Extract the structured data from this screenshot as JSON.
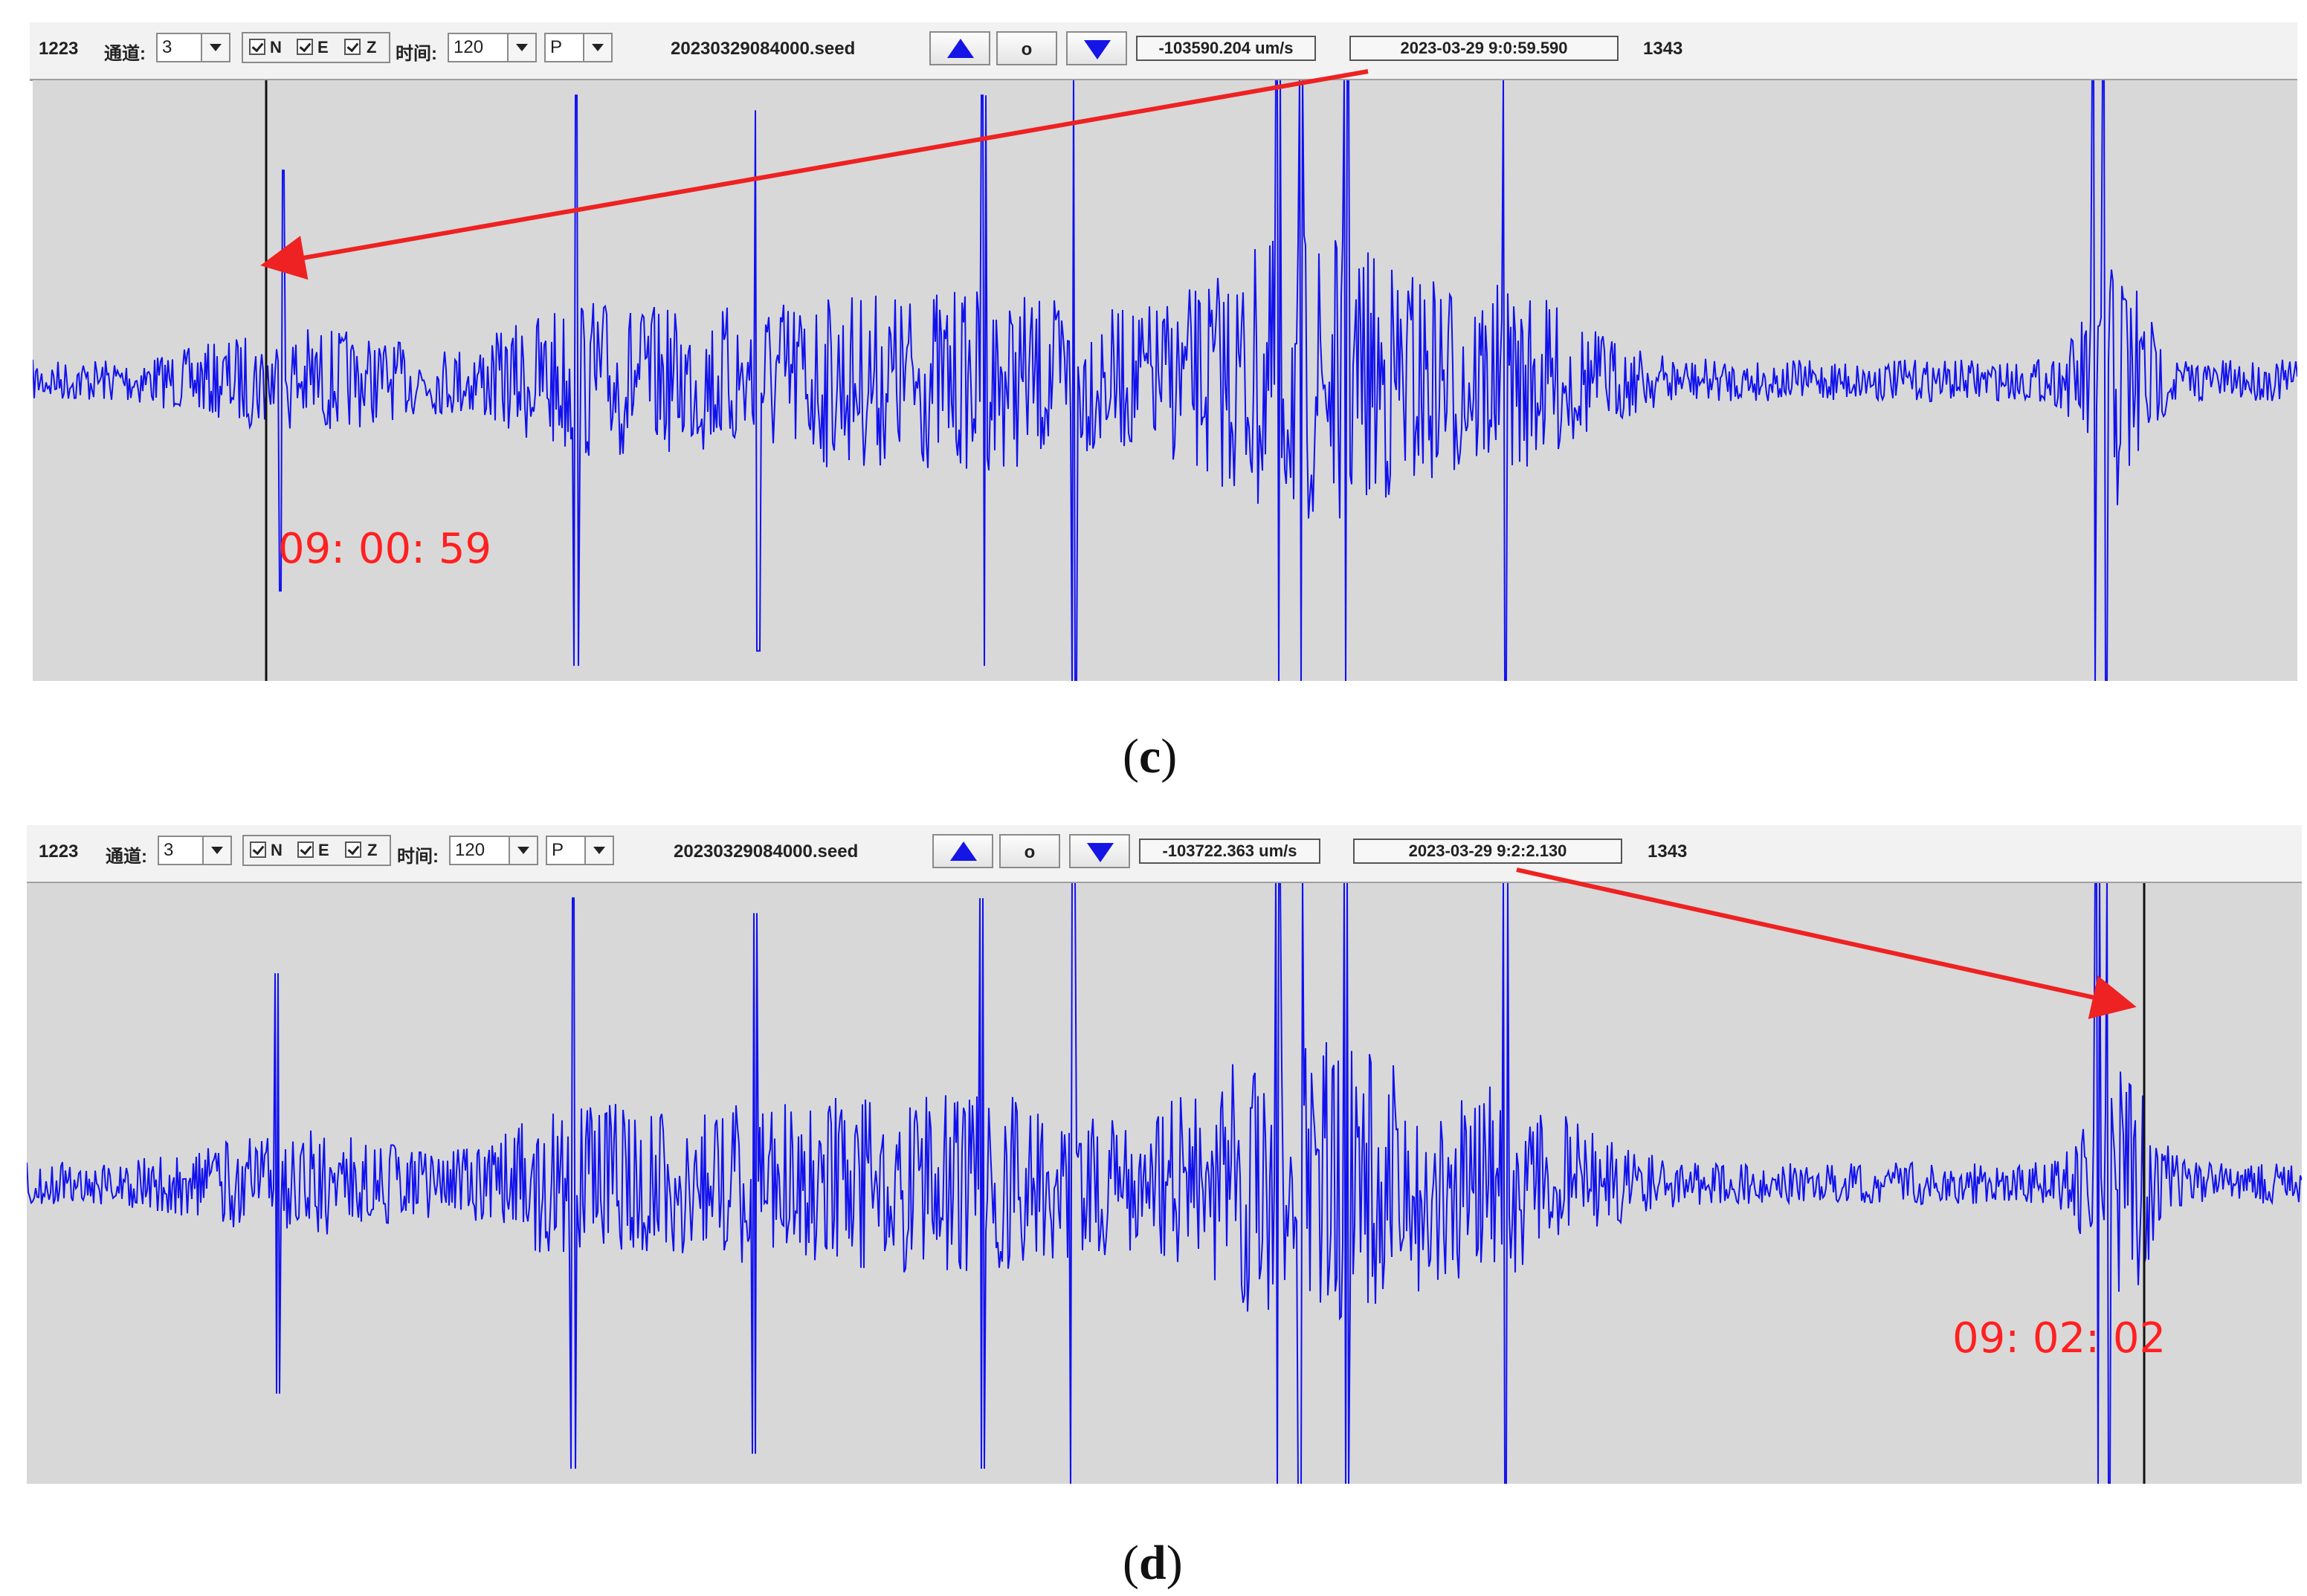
{
  "colors": {
    "trace": "#1111ee",
    "arrow": "#ee2222",
    "plot_bg": "#d8d8d8",
    "toolbar_bg": "#f2f2f2"
  },
  "icons": {
    "up": "triangle-up-icon",
    "down": "triangle-down-icon",
    "combo": "chevron-down-icon",
    "check": "checkbox-checked-icon"
  },
  "panels": [
    {
      "id_left": "1223",
      "channel_label": "通道:",
      "channel_value": "3",
      "check_n": "N",
      "check_e": "E",
      "check_z": "Z",
      "time_label": "时间:",
      "time_value": "120",
      "phase_value": "P",
      "file_name": "20230329084000.seed",
      "btn_o": "o",
      "amplitude": "-103590.204 um/s",
      "timestamp": "2023-03-29 9:0:59.590",
      "id_right": "1343",
      "marker_time": "09: 00: 59",
      "caption_letter": "c"
    },
    {
      "id_left": "1223",
      "channel_label": "通道:",
      "channel_value": "3",
      "check_n": "N",
      "check_e": "E",
      "check_z": "Z",
      "time_label": "时间:",
      "time_value": "120",
      "phase_value": "P",
      "file_name": "20230329084000.seed",
      "btn_o": "o",
      "amplitude": "-103722.363 um/s",
      "timestamp": "2023-03-29 9:2:2.130",
      "id_right": "1343",
      "marker_time": "09: 02: 02",
      "caption_letter": "d"
    }
  ]
}
